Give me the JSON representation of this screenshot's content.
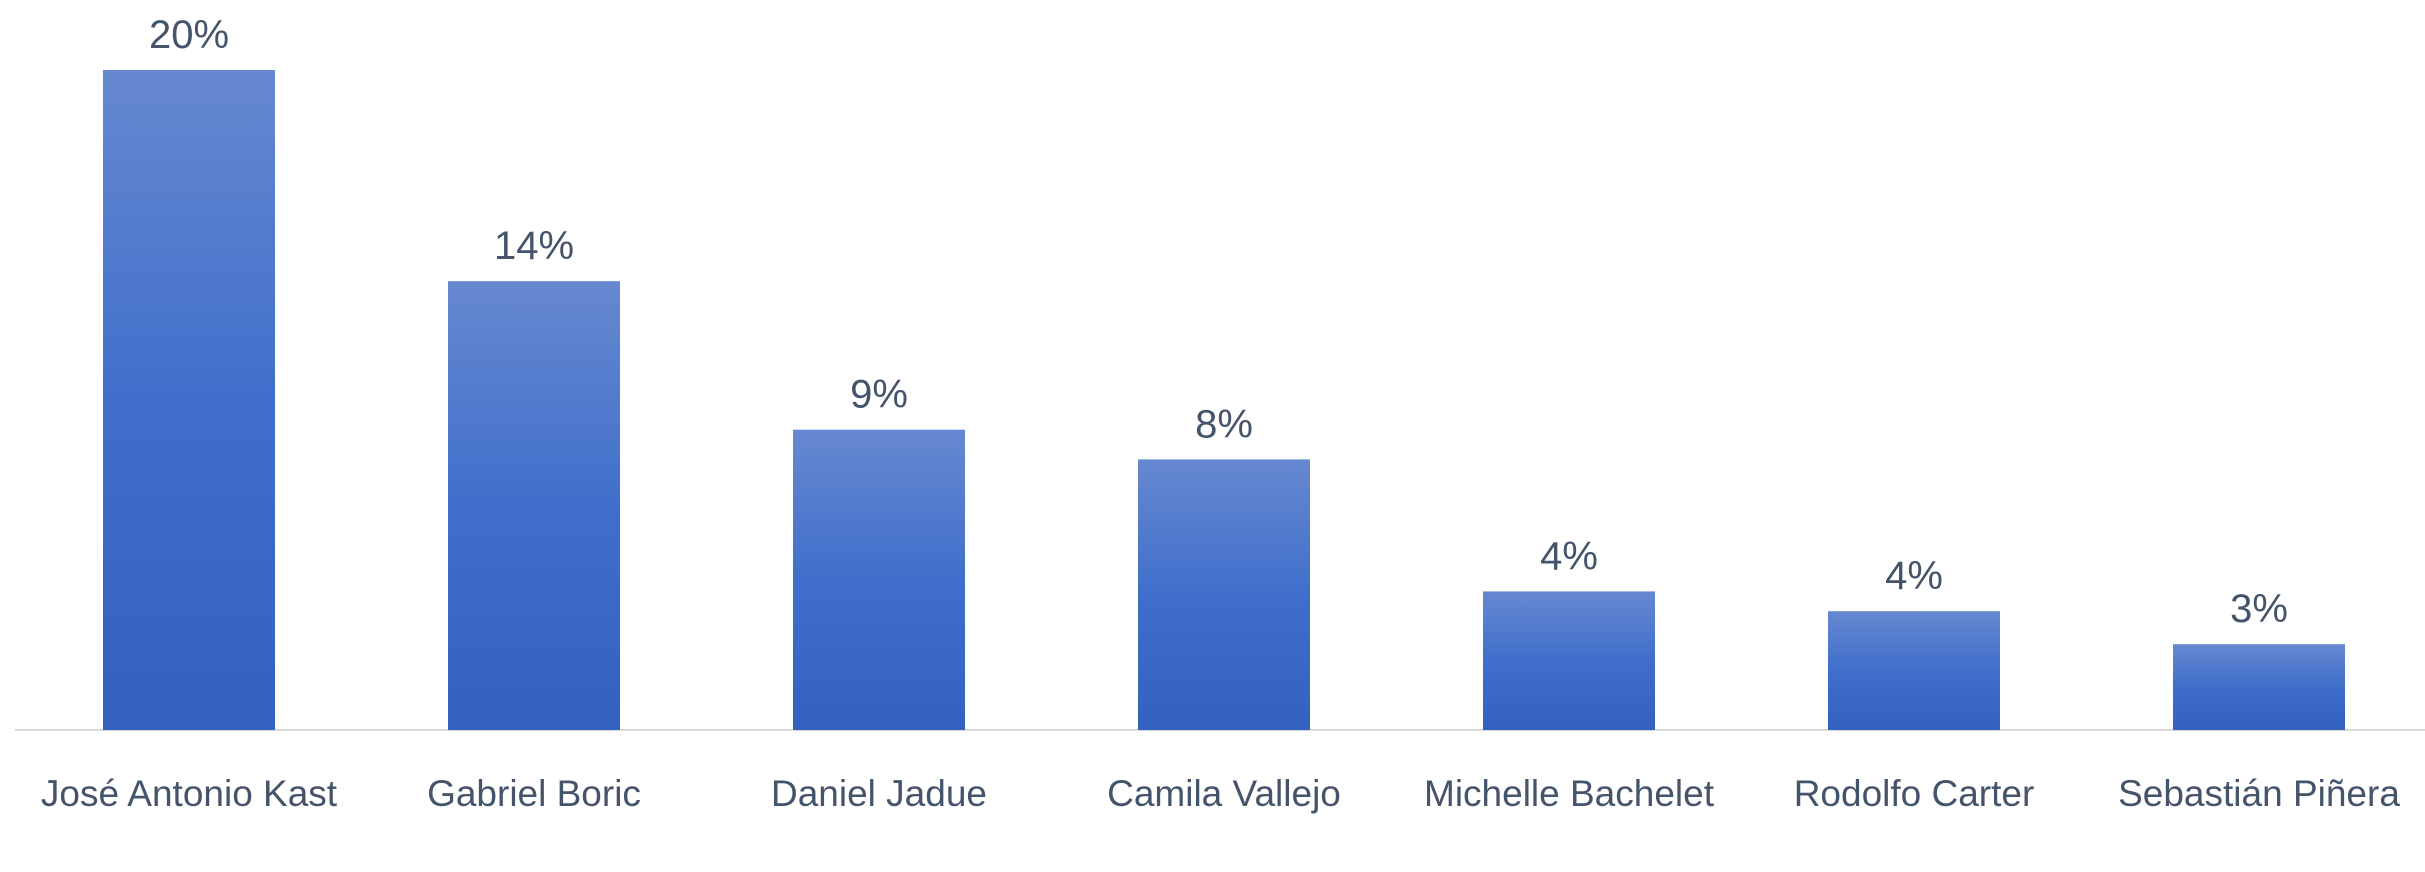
{
  "chart_data": {
    "type": "bar",
    "categories": [
      "José Antonio Kast",
      "Gabriel Boric",
      "Daniel Jadue",
      "Camila Vallejo",
      "Michelle Bachelet",
      "Rodolfo Carter",
      "Sebastián Piñera"
    ],
    "values": [
      20,
      13.6,
      9.1,
      8.2,
      4.2,
      3.6,
      2.6
    ],
    "value_labels": [
      "20%",
      "14%",
      "9%",
      "8%",
      "4%",
      "4%",
      "3%"
    ],
    "color": "#3a66c4"
  }
}
